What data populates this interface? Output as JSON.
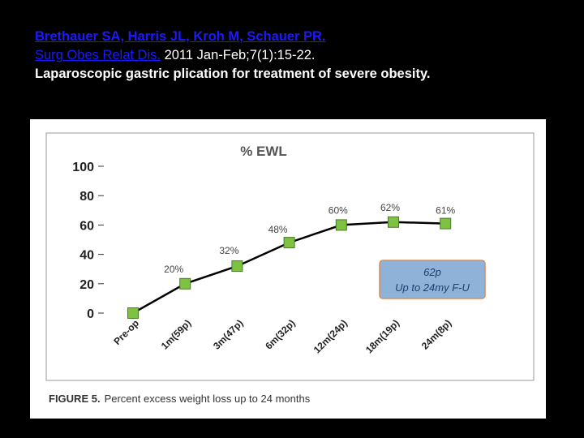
{
  "citation": {
    "authors": "Brethauer SA, Harris JL, Kroh M, Schauer PR.",
    "journal": "Surg Obes Relat Dis.",
    "details": "2011 Jan-Feb;7(1):15-22.",
    "title": "Laparoscopic gastric plication for treatment of severe obesity."
  },
  "figure": {
    "caption_label": "FIGURE 5.",
    "caption_text": "Percent excess weight loss up to 24 months",
    "box": {
      "line1": "62p",
      "line2": "Up to 24my F-U"
    }
  },
  "colors": {
    "marker": "#7dc242",
    "marker_stroke": "#4a7a2a",
    "line": "#000000",
    "box_fill": "#8fb2d9",
    "box_stroke": "#d98a5a",
    "box_text": "#1f3d6b"
  },
  "chart_data": {
    "type": "line",
    "title": "% EWL",
    "categories": [
      "Pre-op",
      "1m(59p)",
      "3m(47p)",
      "6m(32p)",
      "12m(24p)",
      "18m(19p)",
      "24m(8p)"
    ],
    "values": [
      0,
      20,
      32,
      48,
      60,
      62,
      61
    ],
    "data_labels": [
      "",
      "20%",
      "32%",
      "48%",
      "60%",
      "62%",
      "61%"
    ],
    "ylim": [
      0,
      100
    ],
    "yticks": [
      0,
      20,
      40,
      60,
      80,
      100
    ],
    "xlabel": "",
    "ylabel": ""
  }
}
